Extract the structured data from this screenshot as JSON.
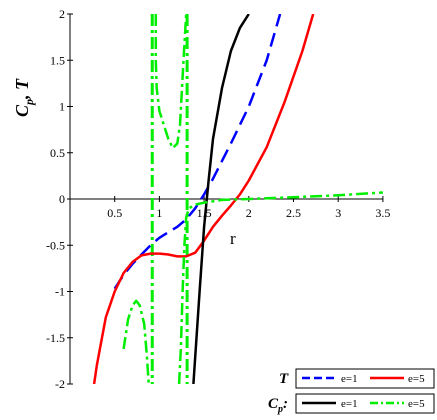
{
  "chart_data": {
    "type": "line",
    "ylabel": "C",
    "ylabel_sub": "p",
    "ylabel_tail": ", T",
    "xlabel": "r",
    "xlim": [
      0,
      3.5
    ],
    "ylim": [
      -2,
      2
    ],
    "x_ticks": [
      "0.5",
      "1",
      "1.5",
      "2",
      "2.5",
      "3",
      "3.5"
    ],
    "x_tick_values": [
      0.5,
      1,
      1.5,
      2,
      2.5,
      3,
      3.5
    ],
    "y_ticks": [
      "2",
      "1.5",
      "1",
      "0.5",
      "0",
      "-0.5",
      "-1",
      "-1.5",
      "-2"
    ],
    "y_tick_values": [
      2,
      1.5,
      1,
      0.5,
      0,
      -0.5,
      -1,
      -1.5,
      -2
    ],
    "grid": false,
    "legend_placement": "bottom-right",
    "legend": [
      {
        "title": "T",
        "entries": [
          "e=1",
          "e=5"
        ]
      },
      {
        "title": "C",
        "title_sub": "p",
        "title_tail": ":",
        "entries": [
          "e=1",
          "e=5"
        ]
      }
    ],
    "series": [
      {
        "legend_group": "T",
        "name": "e=1",
        "color": "#0000ff",
        "dash": "long-dash",
        "points": [
          [
            0.5,
            -0.97
          ],
          [
            0.6,
            -0.82
          ],
          [
            0.7,
            -0.7
          ],
          [
            0.8,
            -0.6
          ],
          [
            0.9,
            -0.5
          ],
          [
            1.0,
            -0.42
          ],
          [
            1.1,
            -0.36
          ],
          [
            1.2,
            -0.3
          ],
          [
            1.3,
            -0.22
          ],
          [
            1.4,
            -0.1
          ],
          [
            1.5,
            0.05
          ],
          [
            1.6,
            0.22
          ],
          [
            1.8,
            0.6
          ],
          [
            2.0,
            1.0
          ],
          [
            2.2,
            1.5
          ],
          [
            2.35,
            2.0
          ]
        ]
      },
      {
        "legend_group": "T",
        "name": "e=5",
        "color": "#ff0000",
        "dash": "solid",
        "points": [
          [
            0.27,
            -2.0
          ],
          [
            0.3,
            -1.8
          ],
          [
            0.4,
            -1.28
          ],
          [
            0.5,
            -1.0
          ],
          [
            0.6,
            -0.8
          ],
          [
            0.7,
            -0.68
          ],
          [
            0.8,
            -0.61
          ],
          [
            0.9,
            -0.59
          ],
          [
            1.0,
            -0.59
          ],
          [
            1.1,
            -0.6
          ],
          [
            1.2,
            -0.62
          ],
          [
            1.3,
            -0.62
          ],
          [
            1.4,
            -0.58
          ],
          [
            1.5,
            -0.45
          ],
          [
            1.6,
            -0.3
          ],
          [
            1.7,
            -0.18
          ],
          [
            1.8,
            -0.07
          ],
          [
            1.9,
            0.05
          ],
          [
            2.0,
            0.2
          ],
          [
            2.2,
            0.56
          ],
          [
            2.4,
            1.05
          ],
          [
            2.6,
            1.6
          ],
          [
            2.72,
            2.0
          ]
        ]
      },
      {
        "legend_group": "Cp",
        "name": "e=1",
        "color": "#000000",
        "dash": "solid",
        "points": [
          [
            1.38,
            -2.0
          ],
          [
            1.45,
            -1.0
          ],
          [
            1.5,
            -0.3
          ],
          [
            1.55,
            0.2
          ],
          [
            1.6,
            0.65
          ],
          [
            1.7,
            1.2
          ],
          [
            1.8,
            1.6
          ],
          [
            1.9,
            1.85
          ],
          [
            2.0,
            2.0
          ]
        ]
      },
      {
        "legend_group": "Cp",
        "name": "e=5",
        "color": "#00ee00",
        "dash": "dash-dot",
        "segments": [
          [
            [
              0.6,
              -1.62
            ],
            [
              0.65,
              -1.3
            ],
            [
              0.7,
              -1.15
            ],
            [
              0.74,
              -1.1
            ],
            [
              0.78,
              -1.15
            ],
            [
              0.83,
              -1.35
            ],
            [
              0.86,
              -1.7
            ],
            [
              0.88,
              -2.0
            ]
          ],
          [
            [
              0.96,
              2.0
            ],
            [
              0.96,
              1.5
            ],
            [
              0.97,
              1.2
            ],
            [
              1.0,
              0.95
            ],
            [
              1.05,
              0.8
            ],
            [
              1.1,
              0.65
            ],
            [
              1.15,
              0.55
            ],
            [
              1.2,
              0.6
            ],
            [
              1.23,
              0.8
            ],
            [
              1.27,
              1.5
            ],
            [
              1.3,
              2.0
            ]
          ],
          [
            [
              1.22,
              -2.0
            ],
            [
              1.24,
              -1.6
            ],
            [
              1.26,
              -1.0
            ],
            [
              1.28,
              -0.5
            ],
            [
              1.3,
              -0.2
            ],
            [
              1.33,
              -0.1
            ],
            [
              1.4,
              -0.06
            ],
            [
              1.5,
              -0.04
            ],
            [
              1.7,
              -0.01
            ],
            [
              2.0,
              0.0
            ],
            [
              2.5,
              0.02
            ],
            [
              3.0,
              0.04
            ],
            [
              3.5,
              0.07
            ]
          ]
        ]
      }
    ],
    "asymptotes": [
      {
        "series": "Cp e=5",
        "x": 0.92
      },
      {
        "series": "Cp e=5",
        "x": 1.31
      }
    ]
  }
}
